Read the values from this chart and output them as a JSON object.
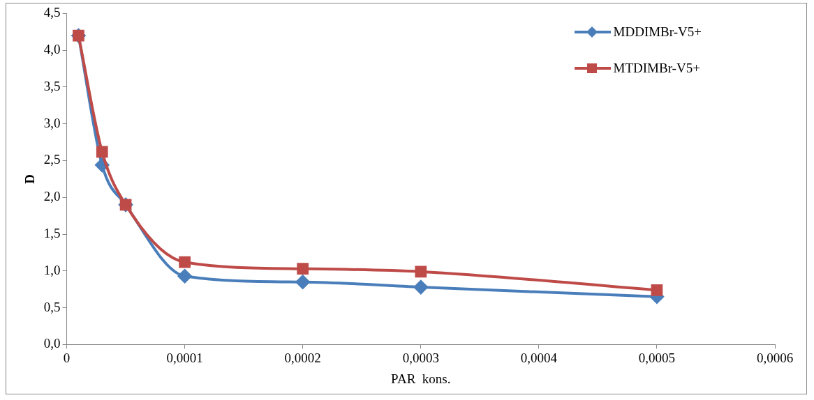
{
  "chart_data": {
    "type": "line",
    "xlabel": "PAR  kons.",
    "ylabel": "D",
    "x": [
      1e-05,
      3e-05,
      5e-05,
      0.0001,
      0.0002,
      0.0003,
      0.0005
    ],
    "series": [
      {
        "name": "MDDIMBr-V5+",
        "color": "#4a7ebb",
        "marker": "diamond",
        "values": [
          4.2,
          2.44,
          1.9,
          0.93,
          0.85,
          0.78,
          0.65
        ]
      },
      {
        "name": "MTDIMBr-V5+",
        "color": "#be4b48",
        "marker": "square",
        "values": [
          4.2,
          2.62,
          1.9,
          1.12,
          1.03,
          0.99,
          0.74
        ]
      }
    ],
    "xlim": [
      0,
      0.0006
    ],
    "xticks": [
      0,
      {
        "value": 0.0001,
        "label": "0,0001"
      },
      {
        "value": 0.0002,
        "label": "0,0002"
      },
      {
        "value": 0.0003,
        "label": "0,0003"
      },
      {
        "value": 0.0004,
        "label": "0,0004"
      },
      {
        "value": 0.0005,
        "label": "0,0005"
      },
      {
        "value": 0.0006,
        "label": "0,0006"
      }
    ],
    "ylim": [
      0,
      4.5
    ],
    "yticks": [
      {
        "value": 0,
        "label": "0,0"
      },
      {
        "value": 0.5,
        "label": "0,5"
      },
      {
        "value": 1,
        "label": "1,0"
      },
      {
        "value": 1.5,
        "label": "1,5"
      },
      {
        "value": 2,
        "label": "2,0"
      },
      {
        "value": 2.5,
        "label": "2,5"
      },
      {
        "value": 3,
        "label": "3,0"
      },
      {
        "value": 3.5,
        "label": "3,5"
      },
      {
        "value": 4,
        "label": "4,0"
      },
      {
        "value": 4.5,
        "label": "4,5"
      }
    ],
    "grid": false,
    "legend": "top right"
  }
}
